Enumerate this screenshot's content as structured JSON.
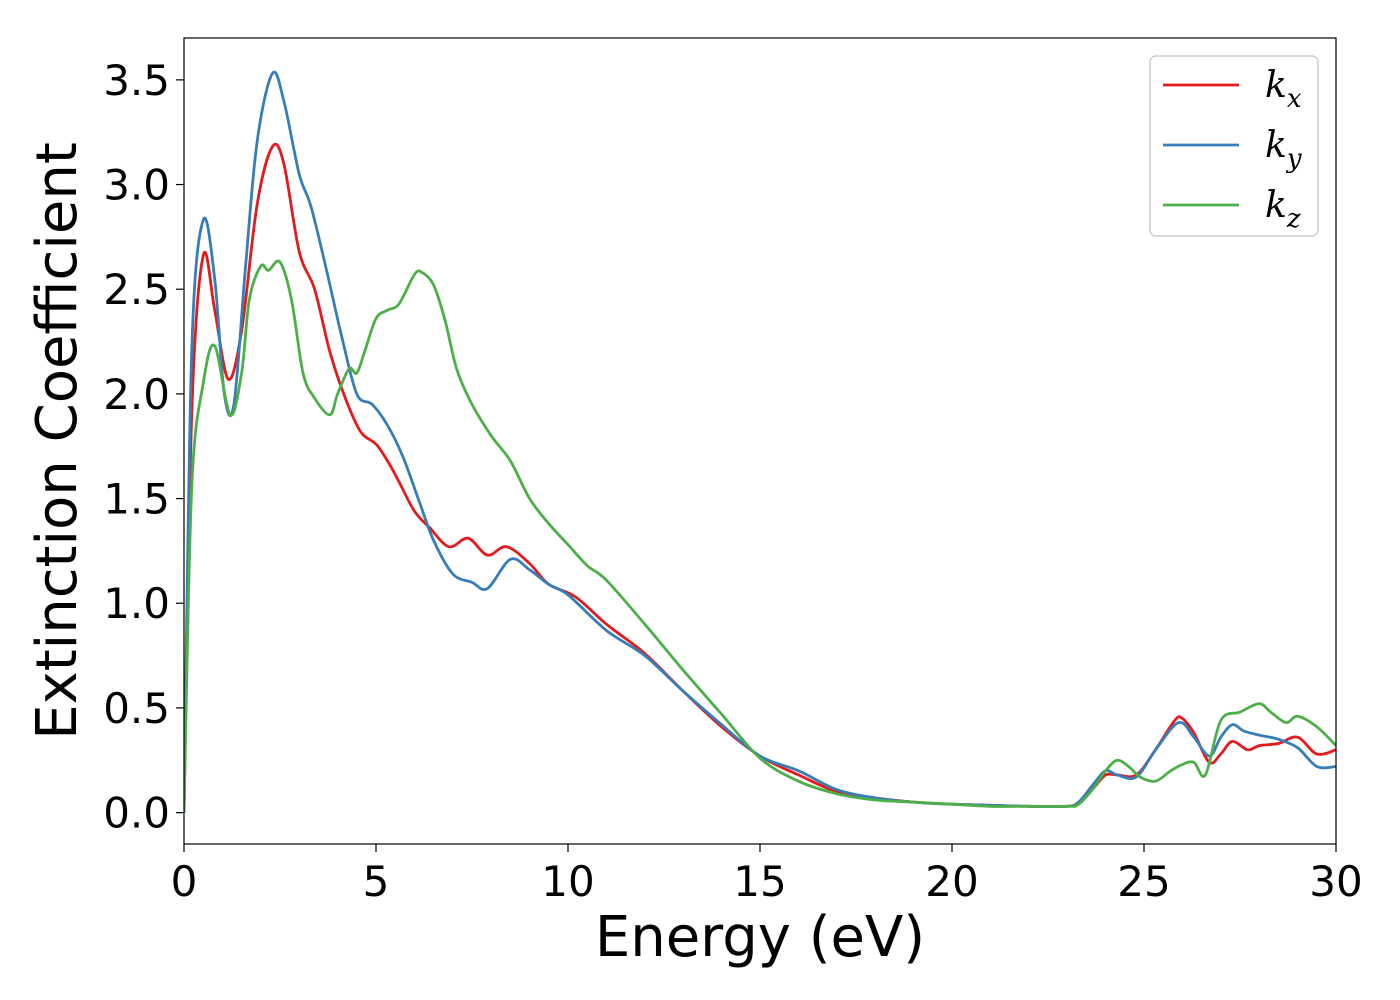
{
  "chart_data": {
    "type": "line",
    "xlabel": "Energy (eV)",
    "ylabel": "Extinction Coefficient",
    "xlim": [
      0,
      30
    ],
    "ylim": [
      -0.15,
      3.7
    ],
    "x_ticks": [
      "0",
      "5",
      "10",
      "15",
      "20",
      "25",
      "30"
    ],
    "y_ticks": [
      "0.0",
      "0.5",
      "1.0",
      "1.5",
      "2.0",
      "2.5",
      "3.0",
      "3.5"
    ],
    "grid": false,
    "legend_position": "top-right",
    "series": [
      {
        "name": "kx",
        "label_base": "k",
        "label_sub": "x",
        "color": "#e41a1c",
        "x": [
          0,
          0.2,
          0.5,
          0.8,
          1.15,
          1.5,
          1.9,
          2.3,
          2.6,
          3.0,
          3.4,
          3.8,
          4.2,
          4.6,
          5.0,
          5.3,
          5.6,
          6.0,
          6.4,
          6.9,
          7.4,
          7.9,
          8.4,
          9.0,
          9.5,
          10.2,
          11.0,
          12.0,
          13.0,
          14.0,
          15.0,
          16.0,
          17.0,
          18.0,
          19.0,
          20.0,
          21.0,
          22.0,
          23.0,
          23.3,
          23.7,
          24.0,
          24.3,
          24.8,
          25.3,
          25.8,
          26.0,
          26.3,
          26.7,
          27.0,
          27.3,
          27.7,
          28.0,
          28.5,
          29.0,
          29.5,
          30.0
        ],
        "y": [
          0.0,
          1.9,
          2.66,
          2.4,
          2.07,
          2.3,
          2.9,
          3.18,
          3.1,
          2.68,
          2.5,
          2.2,
          1.98,
          1.82,
          1.76,
          1.68,
          1.58,
          1.44,
          1.36,
          1.27,
          1.31,
          1.23,
          1.27,
          1.19,
          1.09,
          1.03,
          0.9,
          0.76,
          0.58,
          0.41,
          0.27,
          0.18,
          0.1,
          0.07,
          0.05,
          0.04,
          0.035,
          0.03,
          0.03,
          0.05,
          0.12,
          0.18,
          0.18,
          0.18,
          0.3,
          0.44,
          0.45,
          0.38,
          0.24,
          0.28,
          0.34,
          0.3,
          0.32,
          0.33,
          0.36,
          0.28,
          0.3
        ]
      },
      {
        "name": "ky",
        "label_base": "k",
        "label_sub": "y",
        "color": "#377eb8",
        "x": [
          0,
          0.2,
          0.5,
          0.8,
          1.05,
          1.3,
          1.6,
          1.9,
          2.3,
          2.6,
          3.0,
          3.3,
          3.7,
          4.1,
          4.5,
          4.9,
          5.3,
          5.7,
          6.1,
          6.5,
          7.0,
          7.5,
          7.9,
          8.5,
          9.0,
          9.5,
          10.0,
          11.0,
          12.0,
          13.0,
          14.0,
          15.0,
          16.0,
          17.0,
          18.0,
          19.0,
          20.0,
          21.0,
          22.0,
          23.0,
          23.3,
          23.7,
          24.0,
          24.3,
          24.8,
          25.3,
          25.9,
          26.3,
          26.7,
          27.0,
          27.3,
          27.6,
          28.0,
          28.5,
          29.0,
          29.5,
          30.0
        ],
        "y": [
          0.0,
          2.2,
          2.83,
          2.55,
          2.0,
          1.95,
          2.6,
          3.2,
          3.53,
          3.4,
          3.05,
          2.9,
          2.6,
          2.28,
          2.0,
          1.95,
          1.85,
          1.7,
          1.5,
          1.3,
          1.14,
          1.1,
          1.07,
          1.21,
          1.16,
          1.09,
          1.04,
          0.87,
          0.75,
          0.58,
          0.42,
          0.27,
          0.2,
          0.11,
          0.07,
          0.05,
          0.04,
          0.035,
          0.03,
          0.03,
          0.05,
          0.14,
          0.2,
          0.18,
          0.17,
          0.3,
          0.43,
          0.36,
          0.27,
          0.36,
          0.42,
          0.39,
          0.37,
          0.35,
          0.31,
          0.22,
          0.22
        ]
      },
      {
        "name": "kz",
        "label_base": "k",
        "label_sub": "z",
        "color": "#4daf4a",
        "x": [
          0,
          0.2,
          0.5,
          0.8,
          1.2,
          1.5,
          1.7,
          2.0,
          2.2,
          2.5,
          2.8,
          3.1,
          3.4,
          3.8,
          4.0,
          4.3,
          4.5,
          4.7,
          5.0,
          5.3,
          5.6,
          6.0,
          6.2,
          6.5,
          6.8,
          7.1,
          7.5,
          8.0,
          8.5,
          9.0,
          9.5,
          10.0,
          10.5,
          11.0,
          12.0,
          13.0,
          14.0,
          15.0,
          16.0,
          17.0,
          18.0,
          19.0,
          20.0,
          21.0,
          22.0,
          23.0,
          23.3,
          23.7,
          24.0,
          24.3,
          24.6,
          24.9,
          25.3,
          25.7,
          26.0,
          26.3,
          26.6,
          27.0,
          27.5,
          28.0,
          28.3,
          28.7,
          29.0,
          29.5,
          30.0
        ],
        "y": [
          0.0,
          1.55,
          2.05,
          2.23,
          1.9,
          2.1,
          2.45,
          2.61,
          2.59,
          2.63,
          2.45,
          2.1,
          1.98,
          1.9,
          2.0,
          2.12,
          2.1,
          2.2,
          2.36,
          2.4,
          2.43,
          2.57,
          2.58,
          2.52,
          2.35,
          2.12,
          1.95,
          1.8,
          1.68,
          1.5,
          1.38,
          1.28,
          1.18,
          1.11,
          0.9,
          0.68,
          0.47,
          0.26,
          0.15,
          0.09,
          0.06,
          0.05,
          0.04,
          0.03,
          0.03,
          0.03,
          0.04,
          0.12,
          0.2,
          0.25,
          0.22,
          0.17,
          0.15,
          0.2,
          0.23,
          0.24,
          0.18,
          0.44,
          0.48,
          0.52,
          0.48,
          0.43,
          0.46,
          0.41,
          0.32
        ]
      }
    ]
  }
}
